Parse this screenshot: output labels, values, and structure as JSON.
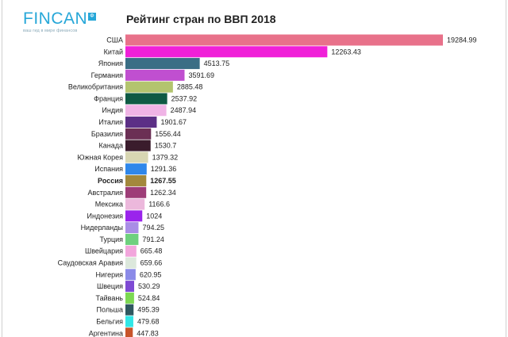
{
  "logo": {
    "text": "FINCAN",
    "box": "Ф",
    "tagline": "ваш гид в мире финансов"
  },
  "chart_data": {
    "type": "bar",
    "orientation": "horizontal",
    "title": "Рейтинг стран по ВВП 2018",
    "xlabel": "",
    "ylabel": "",
    "grid": false,
    "highlight": "Россия",
    "categories": [
      "США",
      "Китай",
      "Япония",
      "Германия",
      "Великобритания",
      "Франция",
      "Индия",
      "Италия",
      "Бразилия",
      "Канада",
      "Южная Корея",
      "Испания",
      "Россия",
      "Австралия",
      "Мексика",
      "Индонезия",
      "Нидерланды",
      "Турция",
      "Швейцария",
      "Саудовская Аравия",
      "Нигерия",
      "Швеция",
      "Тайвань",
      "Польша",
      "Бельгия",
      "Аргентина"
    ],
    "values": [
      19284.99,
      12263.43,
      4513.75,
      3591.69,
      2885.48,
      2537.92,
      2487.94,
      1901.67,
      1556.44,
      1530.7,
      1379.32,
      1291.36,
      1267.55,
      1262.34,
      1166.6,
      1024,
      794.25,
      791.24,
      665.48,
      659.66,
      620.95,
      530.29,
      524.84,
      495.39,
      479.68,
      447.83
    ],
    "labels": [
      "19284.99",
      "12263.43",
      "4513.75",
      "3591.69",
      "2885.48",
      "2537.92",
      "2487.94",
      "1901.67",
      "1556.44",
      "1530.7",
      "1379.32",
      "1291.36",
      "1267.55",
      "1262.34",
      "1166.6",
      "1024",
      "794.25",
      "791.24",
      "665.48",
      "659.66",
      "620.95",
      "530.29",
      "524.84",
      "495.39",
      "479.68",
      "447.83"
    ],
    "colors": [
      "#e8718a",
      "#f020d8",
      "#3a6e85",
      "#c04fd0",
      "#b3c46e",
      "#0e5a44",
      "#f0b4e6",
      "#5c2f86",
      "#6b2f54",
      "#3a1c2c",
      "#d8d6b2",
      "#2f87ea",
      "#a3883c",
      "#9e3d78",
      "#ecb8dc",
      "#9a24ec",
      "#a98de6",
      "#6ed07e",
      "#f2a6dc",
      "#dce8dc",
      "#8a8ae8",
      "#7e4ad4",
      "#7cd852",
      "#2f5860",
      "#32e6e6",
      "#c8542a"
    ]
  }
}
